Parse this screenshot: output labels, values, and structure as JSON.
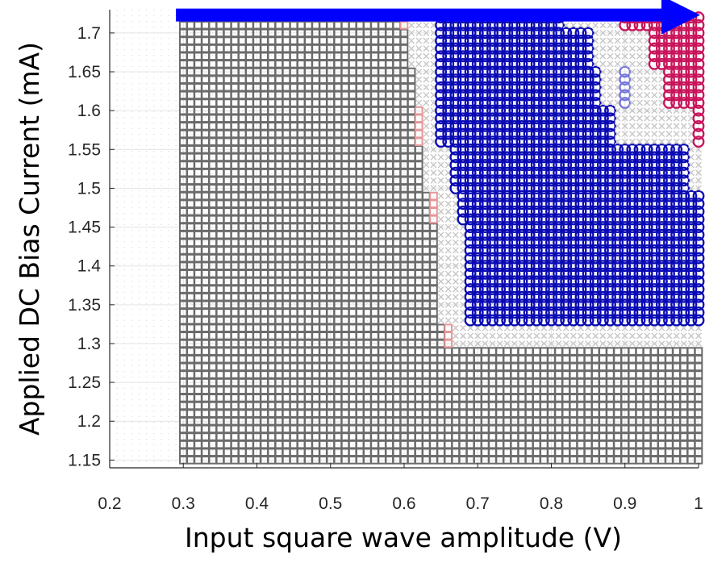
{
  "chart_data": {
    "type": "scatter",
    "title": "",
    "xlabel": "Input square wave amplitude (V)",
    "ylabel": "Applied DC Bias Current (mA)",
    "xlim": [
      0.2,
      1.0
    ],
    "ylim": [
      1.14,
      1.73
    ],
    "xticks": [
      "0.2",
      "0.3",
      "0.4",
      "0.5",
      "0.6",
      "0.7",
      "0.8",
      "0.9",
      "1"
    ],
    "yticks": [
      "1.15",
      "1.2",
      "1.25",
      "1.3",
      "1.35",
      "1.4",
      "1.45",
      "1.5",
      "1.55",
      "1.6",
      "1.65",
      "1.7"
    ],
    "grid": true,
    "legend": "none",
    "colors": {
      "square_gray": "#6b6b6b",
      "square_pink": "#e89696",
      "x_light": "#c8c8c8",
      "circle_blue": "#0a0ab4",
      "circle_navy": "#0a0a64",
      "circle_magenta": "#c8145a",
      "circle_pink_light": "#f08cb4",
      "circle_lavender": "#7878dc",
      "arrow": "#0000ff",
      "grid": "#e4e4e4",
      "dot_grid": "#d2d2d2"
    },
    "grid_steps": {
      "x_start": 0.3,
      "x_step": 0.01,
      "x_count": 71,
      "y_start": 1.15,
      "y_step": 0.01,
      "y_count": 58
    },
    "arrow": {
      "x_from": 0.29,
      "x_to": 1.0,
      "y": 1.72
    },
    "rows": [
      {
        "y": 1.15,
        "segments": [
          {
            "from": 0.3,
            "to": 1.0,
            "marker": "square_gray"
          }
        ]
      },
      {
        "y": 1.26,
        "segments": [
          {
            "from": 0.3,
            "to": 1.0,
            "marker": "square_gray"
          }
        ]
      },
      {
        "y": 1.3,
        "segments": [
          {
            "from": 0.3,
            "to": 0.65,
            "marker": "square_gray"
          },
          {
            "from": 0.66,
            "to": 0.66,
            "marker": "square_pink"
          },
          {
            "from": 0.67,
            "to": 1.0,
            "marker": "x_light"
          }
        ]
      },
      {
        "y": 1.33,
        "segments": [
          {
            "from": 0.3,
            "to": 0.64,
            "marker": "square_gray"
          },
          {
            "from": 0.65,
            "to": 0.68,
            "marker": "x_light"
          },
          {
            "from": 0.69,
            "to": 1.0,
            "marker": "circle_blue"
          }
        ]
      },
      {
        "y": 1.46,
        "segments": [
          {
            "from": 0.3,
            "to": 0.63,
            "marker": "square_gray"
          },
          {
            "from": 0.64,
            "to": 0.64,
            "marker": "square_pink"
          },
          {
            "from": 0.65,
            "to": 0.67,
            "marker": "x_light"
          },
          {
            "from": 0.68,
            "to": 1.0,
            "marker": "circle_blue"
          }
        ]
      },
      {
        "y": 1.5,
        "segments": [
          {
            "from": 0.3,
            "to": 0.62,
            "marker": "square_gray"
          },
          {
            "from": 0.63,
            "to": 0.66,
            "marker": "x_light"
          },
          {
            "from": 0.67,
            "to": 0.98,
            "marker": "circle_blue"
          },
          {
            "from": 0.99,
            "to": 1.0,
            "marker": "x_light"
          }
        ]
      },
      {
        "y": 1.56,
        "segments": [
          {
            "from": 0.3,
            "to": 0.61,
            "marker": "square_gray"
          },
          {
            "from": 0.62,
            "to": 0.62,
            "marker": "square_pink"
          },
          {
            "from": 0.63,
            "to": 0.64,
            "marker": "x_light"
          },
          {
            "from": 0.65,
            "to": 0.88,
            "marker": "circle_blue"
          },
          {
            "from": 0.89,
            "to": 0.99,
            "marker": "x_light"
          },
          {
            "from": 1.0,
            "to": 1.0,
            "marker": "circle_magenta"
          }
        ]
      },
      {
        "y": 1.61,
        "segments": [
          {
            "from": 0.3,
            "to": 0.61,
            "marker": "square_gray"
          },
          {
            "from": 0.62,
            "to": 0.64,
            "marker": "x_light"
          },
          {
            "from": 0.65,
            "to": 0.86,
            "marker": "circle_blue"
          },
          {
            "from": 0.87,
            "to": 0.89,
            "marker": "x_light"
          },
          {
            "from": 0.9,
            "to": 0.9,
            "marker": "circle_lavender"
          },
          {
            "from": 0.91,
            "to": 0.95,
            "marker": "x_light"
          },
          {
            "from": 0.96,
            "to": 1.0,
            "marker": "circle_magenta"
          }
        ]
      },
      {
        "y": 1.66,
        "segments": [
          {
            "from": 0.3,
            "to": 0.6,
            "marker": "square_gray"
          },
          {
            "from": 0.61,
            "to": 0.64,
            "marker": "x_light"
          },
          {
            "from": 0.65,
            "to": 0.85,
            "marker": "circle_blue"
          },
          {
            "from": 0.86,
            "to": 0.93,
            "marker": "x_light"
          },
          {
            "from": 0.94,
            "to": 1.0,
            "marker": "circle_magenta"
          }
        ]
      },
      {
        "y": 1.71,
        "segments": [
          {
            "from": 0.3,
            "to": 0.59,
            "marker": "square_gray"
          },
          {
            "from": 0.6,
            "to": 0.6,
            "marker": "square_pink"
          },
          {
            "from": 0.61,
            "to": 0.64,
            "marker": "x_light"
          },
          {
            "from": 0.65,
            "to": 0.81,
            "marker": "circle_blue"
          },
          {
            "from": 0.82,
            "to": 0.89,
            "marker": "x_light"
          },
          {
            "from": 0.9,
            "to": 1.0,
            "marker": "circle_magenta"
          }
        ]
      }
    ]
  }
}
